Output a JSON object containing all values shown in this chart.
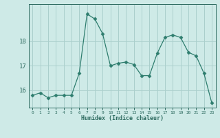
{
  "xlabel": "Humidex (Indice chaleur)",
  "x": [
    0,
    1,
    2,
    3,
    4,
    5,
    6,
    7,
    8,
    9,
    10,
    11,
    12,
    13,
    14,
    15,
    16,
    17,
    18,
    19,
    20,
    21,
    22,
    23
  ],
  "y": [
    15.8,
    15.9,
    15.7,
    15.8,
    15.8,
    15.8,
    16.7,
    19.1,
    18.9,
    18.3,
    17.0,
    17.1,
    17.15,
    17.05,
    16.6,
    16.6,
    17.5,
    18.15,
    18.25,
    18.15,
    17.55,
    17.4,
    16.7,
    15.5
  ],
  "line_color": "#2e7d6e",
  "marker": "D",
  "marker_size": 2.5,
  "bg_color": "#ceeae7",
  "grid_color": "#aacfcc",
  "tick_color": "#2e6b60",
  "label_color": "#2e6b60",
  "ylim": [
    15.3,
    19.5
  ],
  "yticks": [
    16,
    17,
    18
  ],
  "xlim": [
    -0.5,
    23.5
  ],
  "figsize": [
    3.2,
    2.0
  ],
  "dpi": 100
}
